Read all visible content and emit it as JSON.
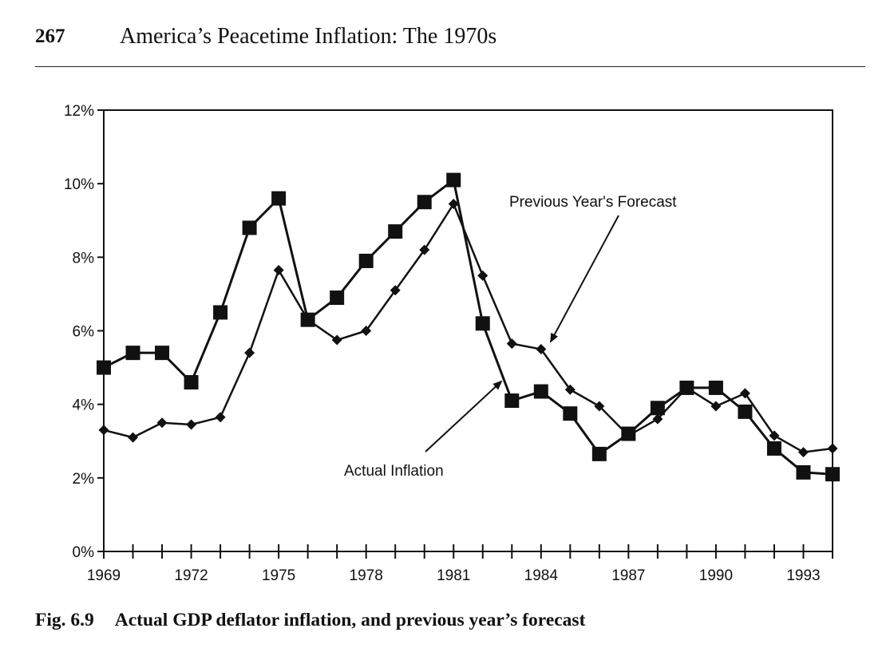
{
  "header": {
    "page_number": "267",
    "running_title": "America’s Peacetime Inflation: The 1970s"
  },
  "caption": {
    "label": "Fig. 6.9",
    "text": "Actual GDP deflator inflation, and previous year’s forecast"
  },
  "chart_data": {
    "type": "line",
    "title": "",
    "xlabel": "",
    "ylabel": "",
    "x": [
      1969,
      1970,
      1971,
      1972,
      1973,
      1974,
      1975,
      1976,
      1977,
      1978,
      1979,
      1980,
      1981,
      1982,
      1983,
      1984,
      1985,
      1986,
      1987,
      1988,
      1989,
      1990,
      1991,
      1992,
      1993,
      1994
    ],
    "xlim": [
      1969,
      1994
    ],
    "ylim": [
      0,
      12
    ],
    "x_tick_labels": [
      "1969",
      "1972",
      "1975",
      "1978",
      "1981",
      "1984",
      "1987",
      "1990",
      "1993"
    ],
    "y_tick_labels": [
      "0%",
      "2%",
      "4%",
      "6%",
      "8%",
      "10%",
      "12%"
    ],
    "y_tick_values": [
      0,
      2,
      4,
      6,
      8,
      10,
      12
    ],
    "grid": false,
    "series": [
      {
        "name": "Actual Inflation",
        "marker": "square",
        "values": [
          5.0,
          5.4,
          5.4,
          4.6,
          6.5,
          8.8,
          9.6,
          6.3,
          6.9,
          7.9,
          8.7,
          9.5,
          10.1,
          6.2,
          4.1,
          4.35,
          3.75,
          2.65,
          3.2,
          3.9,
          4.45,
          4.45,
          3.8,
          2.8,
          2.15,
          2.1
        ]
      },
      {
        "name": "Previous Year's Forecast",
        "marker": "diamond",
        "values": [
          3.3,
          3.1,
          3.5,
          3.45,
          3.65,
          5.4,
          7.65,
          6.3,
          5.75,
          6.0,
          7.1,
          8.2,
          9.45,
          7.5,
          5.65,
          5.5,
          4.4,
          3.95,
          3.15,
          3.6,
          4.45,
          3.95,
          4.3,
          3.15,
          2.7,
          2.8
        ]
      }
    ],
    "annotations": [
      {
        "text": "Previous Year's Forecast",
        "points_to_series": "Previous Year's Forecast"
      },
      {
        "text": "Actual Inflation",
        "points_to_series": "Actual Inflation"
      }
    ]
  }
}
